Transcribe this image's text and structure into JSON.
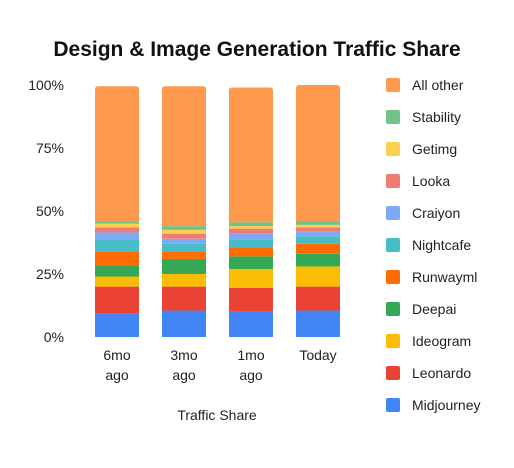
{
  "chart_data": {
    "type": "bar",
    "stacked": true,
    "title": "Design & Image Generation Traffic Share",
    "xlabel": "Traffic Share",
    "ylabel": "",
    "ylim": [
      0,
      100
    ],
    "yticks": [
      "0%",
      "25%",
      "50%",
      "75%",
      "100%"
    ],
    "grid": false,
    "legend_position": "right",
    "categories": [
      [
        "6mo",
        "ago"
      ],
      [
        "3mo",
        "ago"
      ],
      [
        "1mo",
        "ago"
      ],
      [
        "Today"
      ]
    ],
    "series": [
      {
        "name": "Midjourney",
        "color": "#4285f4",
        "values": [
          9.5,
          10.5,
          10,
          10.5
        ]
      },
      {
        "name": "Leonardo",
        "color": "#ea4335",
        "values": [
          10.5,
          9.5,
          9.5,
          9.5
        ]
      },
      {
        "name": "Ideogram",
        "color": "#fbbc04",
        "values": [
          4,
          5,
          7.5,
          8
        ]
      },
      {
        "name": "Deepai",
        "color": "#34a853",
        "values": [
          4.5,
          6,
          5,
          5
        ]
      },
      {
        "name": "Runwayml",
        "color": "#ff6d01",
        "values": [
          5.5,
          3,
          3.5,
          4
        ]
      },
      {
        "name": "Nightcafe",
        "color": "#46bdc6",
        "values": [
          4.5,
          3,
          3,
          3
        ]
      },
      {
        "name": "Craiyon",
        "color": "#7baaf7",
        "values": [
          3,
          2,
          2.5,
          2
        ]
      },
      {
        "name": "Looka",
        "color": "#f07b72",
        "values": [
          2,
          2,
          2,
          1.5
        ]
      },
      {
        "name": "Getimg",
        "color": "#fcd04f",
        "values": [
          1.5,
          1.5,
          1,
          1
        ]
      },
      {
        "name": "Stability",
        "color": "#71c287",
        "values": [
          1,
          1.5,
          1.5,
          1.5
        ]
      },
      {
        "name": "All other",
        "color": "#ff994d",
        "values": [
          53.5,
          55.5,
          53.5,
          54
        ]
      }
    ],
    "legend_order": [
      "All other",
      "Stability",
      "Getimg",
      "Looka",
      "Craiyon",
      "Nightcafe",
      "Runwayml",
      "Deepai",
      "Ideogram",
      "Leonardo",
      "Midjourney"
    ]
  }
}
